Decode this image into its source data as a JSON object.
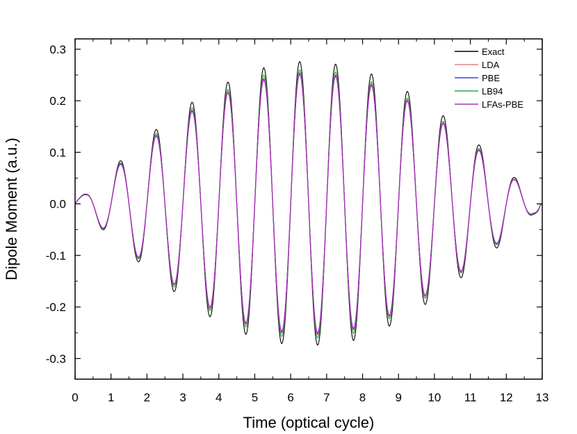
{
  "chart_data": {
    "type": "line",
    "title": "",
    "xlabel": "Time (optical cycle)",
    "ylabel": "Dipole Moment (a.u.)",
    "xlim": [
      0,
      13
    ],
    "ylim": [
      -0.34,
      0.32
    ],
    "x_ticks": [
      0,
      1,
      2,
      3,
      4,
      5,
      6,
      7,
      8,
      9,
      10,
      11,
      12,
      13
    ],
    "x_tick_labels": [
      "0",
      "1",
      "2",
      "3",
      "4",
      "5",
      "6",
      "7",
      "8",
      "9",
      "10",
      "11",
      "12",
      "13"
    ],
    "y_ticks": [
      -0.3,
      -0.2,
      -0.1,
      0.0,
      0.1,
      0.2,
      0.3
    ],
    "y_tick_labels": [
      "-0.3",
      "-0.2",
      "-0.1",
      "0.0",
      "0.1",
      "0.2",
      "0.3"
    ],
    "grid": false,
    "legend_position": "top-right",
    "x_extrema": [
      0.3,
      0.75,
      1.25,
      1.75,
      2.25,
      2.75,
      3.25,
      3.75,
      4.25,
      4.75,
      5.25,
      5.75,
      6.25,
      6.75,
      7.25,
      7.75,
      8.25,
      8.75,
      9.25,
      9.75,
      10.25,
      10.75,
      11.25,
      11.75,
      12.25,
      12.75
    ],
    "series": [
      {
        "name": "Exact",
        "color": "#000000",
        "extrema": [
          0.019,
          -0.049,
          0.083,
          -0.112,
          0.144,
          -0.17,
          0.197,
          -0.219,
          0.236,
          -0.253,
          0.264,
          -0.271,
          0.276,
          -0.274,
          0.271,
          -0.265,
          0.252,
          -0.237,
          0.218,
          -0.195,
          0.171,
          -0.143,
          0.114,
          -0.085,
          0.05,
          -0.02
        ]
      },
      {
        "name": "LDA",
        "color": "#e08080",
        "extrema": [
          0.018,
          -0.046,
          0.077,
          -0.104,
          0.133,
          -0.157,
          0.182,
          -0.203,
          0.218,
          -0.234,
          0.244,
          -0.251,
          0.255,
          -0.254,
          0.251,
          -0.245,
          0.233,
          -0.219,
          0.202,
          -0.18,
          0.158,
          -0.132,
          0.105,
          -0.077,
          0.047,
          -0.018
        ]
      },
      {
        "name": "PBE",
        "color": "#3a3aff",
        "extrema": [
          0.018,
          -0.046,
          0.076,
          -0.103,
          0.131,
          -0.155,
          0.179,
          -0.2,
          0.215,
          -0.231,
          0.24,
          -0.247,
          0.251,
          -0.25,
          0.247,
          -0.241,
          0.229,
          -0.216,
          0.199,
          -0.177,
          0.155,
          -0.13,
          0.103,
          -0.076,
          0.046,
          -0.018
        ]
      },
      {
        "name": "LB94",
        "color": "#2aaa4a",
        "extrema": [
          0.018,
          -0.047,
          0.079,
          -0.106,
          0.136,
          -0.161,
          0.186,
          -0.207,
          0.222,
          -0.239,
          0.25,
          -0.257,
          0.26,
          -0.26,
          0.256,
          -0.251,
          0.237,
          -0.223,
          0.205,
          -0.183,
          0.16,
          -0.134,
          0.107,
          -0.079,
          0.047,
          -0.019
        ]
      },
      {
        "name": "LFAs-PBE",
        "color": "#b02fb0",
        "extrema": [
          0.018,
          -0.046,
          0.077,
          -0.104,
          0.132,
          -0.156,
          0.181,
          -0.201,
          0.216,
          -0.232,
          0.242,
          -0.249,
          0.253,
          -0.252,
          0.249,
          -0.243,
          0.231,
          -0.217,
          0.2,
          -0.178,
          0.156,
          -0.131,
          0.104,
          -0.077,
          0.046,
          -0.018
        ]
      }
    ]
  }
}
